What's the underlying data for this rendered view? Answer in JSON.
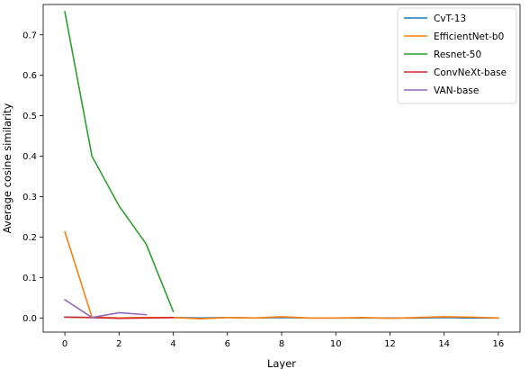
{
  "chart_data": {
    "type": "line",
    "title": "",
    "xlabel": "Layer",
    "ylabel": "Average cosine similarity",
    "xlim": [
      -0.8,
      16.8
    ],
    "ylim": [
      -0.035,
      0.775
    ],
    "xticks": [
      0,
      2,
      4,
      6,
      8,
      10,
      12,
      14,
      16
    ],
    "yticks": [
      0.0,
      0.1,
      0.2,
      0.3,
      0.4,
      0.5,
      0.6,
      0.7
    ],
    "ytick_labels": [
      "0.0",
      "0.1",
      "0.2",
      "0.3",
      "0.4",
      "0.5",
      "0.6",
      "0.7"
    ],
    "grid": false,
    "legend_position": "top-right",
    "series": [
      {
        "name": "CvT-13",
        "color": "#1f77b4",
        "x": [
          0,
          1,
          2,
          3,
          4,
          5,
          6,
          7,
          8,
          9,
          10,
          11,
          12,
          13,
          14,
          15,
          16
        ],
        "y": [
          0.002,
          0.001,
          0.0,
          0.001,
          0.001,
          0.0,
          0.001,
          0.0,
          0.001,
          0.0,
          0.0,
          0.0,
          0.0,
          0.0,
          0.001,
          0.0,
          0.0
        ]
      },
      {
        "name": "EfficientNet-b0",
        "color": "#ff7f0e",
        "x": [
          0,
          1,
          2,
          3,
          4,
          5,
          6,
          7,
          8,
          9,
          10,
          11,
          12,
          13,
          14,
          15,
          16
        ],
        "y": [
          0.213,
          0.002,
          0.0,
          0.001,
          0.001,
          -0.002,
          0.001,
          0.0,
          0.003,
          0.0,
          0.0,
          0.001,
          -0.001,
          0.001,
          0.003,
          0.002,
          0.0
        ]
      },
      {
        "name": "Resnet-50",
        "color": "#2ca02c",
        "x": [
          0,
          1,
          2,
          3,
          4
        ],
        "y": [
          0.757,
          0.4,
          0.277,
          0.183,
          0.016
        ]
      },
      {
        "name": "ConvNeXt-base",
        "color": "#d62728",
        "x": [
          0,
          1,
          2,
          3,
          4
        ],
        "y": [
          0.002,
          0.001,
          -0.001,
          0.0,
          0.001
        ]
      },
      {
        "name": "VAN-base",
        "color": "#9467bd",
        "x": [
          0,
          1,
          2,
          3
        ],
        "y": [
          0.045,
          0.001,
          0.013,
          0.008
        ]
      }
    ]
  }
}
